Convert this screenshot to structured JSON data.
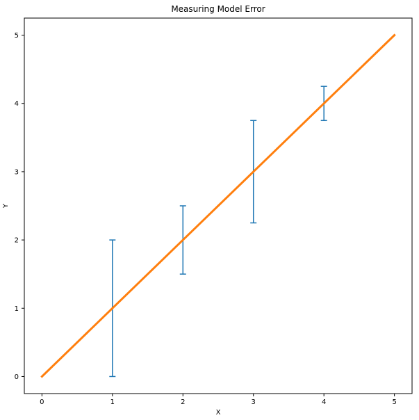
{
  "chart_data": {
    "type": "line",
    "title": "Measuring Model Error",
    "xlabel": "X",
    "ylabel": "Y",
    "xlim": [
      -0.25,
      5.25
    ],
    "ylim": [
      -0.25,
      5.25
    ],
    "xticks": [
      0,
      1,
      2,
      3,
      4,
      5
    ],
    "yticks": [
      0,
      1,
      2,
      3,
      4,
      5
    ],
    "grid": false,
    "legend": "none",
    "series": [
      {
        "kind": "line",
        "color": "#ff7f0e",
        "x": [
          0,
          5
        ],
        "y": [
          0,
          5
        ]
      },
      {
        "kind": "errorbar",
        "color": "#1f77b4",
        "x": [
          1,
          2,
          3,
          4
        ],
        "y": [
          1,
          2,
          3,
          4
        ],
        "yerr": [
          1.0,
          0.5,
          0.75,
          0.25
        ]
      }
    ]
  }
}
